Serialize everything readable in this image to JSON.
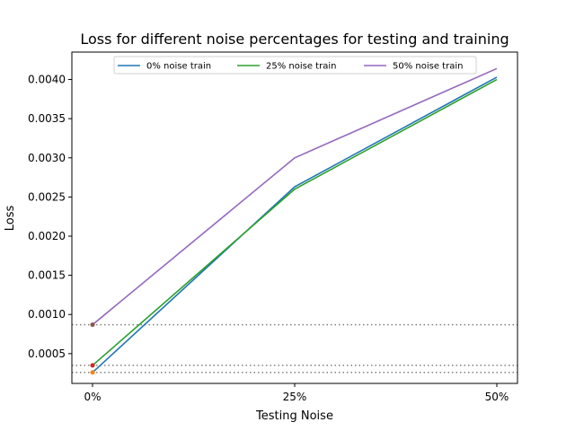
{
  "chart_data": {
    "type": "line",
    "title": "Loss for different noise percentages for testing and training",
    "xlabel": "Testing Noise",
    "ylabel": "Loss",
    "categories": [
      "0%",
      "25%",
      "50%"
    ],
    "ylim": [
      0.00012,
      0.00435
    ],
    "yticks": [
      "0.0005",
      "0.0010",
      "0.0015",
      "0.0020",
      "0.0025",
      "0.0030",
      "0.0035",
      "0.0040"
    ],
    "ytick_values": [
      0.0005,
      0.001,
      0.0015,
      0.002,
      0.0025,
      0.003,
      0.0035,
      0.004
    ],
    "grid": false,
    "legend_position": "top-center",
    "series": [
      {
        "name": "0% noise train",
        "color": "#1f77b4",
        "values": [
          0.00026,
          0.00263,
          0.00403
        ]
      },
      {
        "name": "25% noise train",
        "color": "#2ca02c",
        "values": [
          0.00035,
          0.0026,
          0.004
        ]
      },
      {
        "name": "50% noise train",
        "color": "#9467bd",
        "values": [
          0.00087,
          0.003,
          0.00414
        ]
      }
    ],
    "markers": [
      {
        "x": "0%",
        "y": 0.00026,
        "color": "#ff7f0e"
      },
      {
        "x": "0%",
        "y": 0.00035,
        "color": "#d62728"
      },
      {
        "x": "0%",
        "y": 0.00087,
        "color": "#8c564b"
      }
    ],
    "reference_lines": [
      {
        "y": 0.00026,
        "color": "#808080",
        "style": "dotted"
      },
      {
        "y": 0.00035,
        "color": "#808080",
        "style": "dotted"
      },
      {
        "y": 0.00087,
        "color": "#808080",
        "style": "dotted"
      }
    ]
  }
}
